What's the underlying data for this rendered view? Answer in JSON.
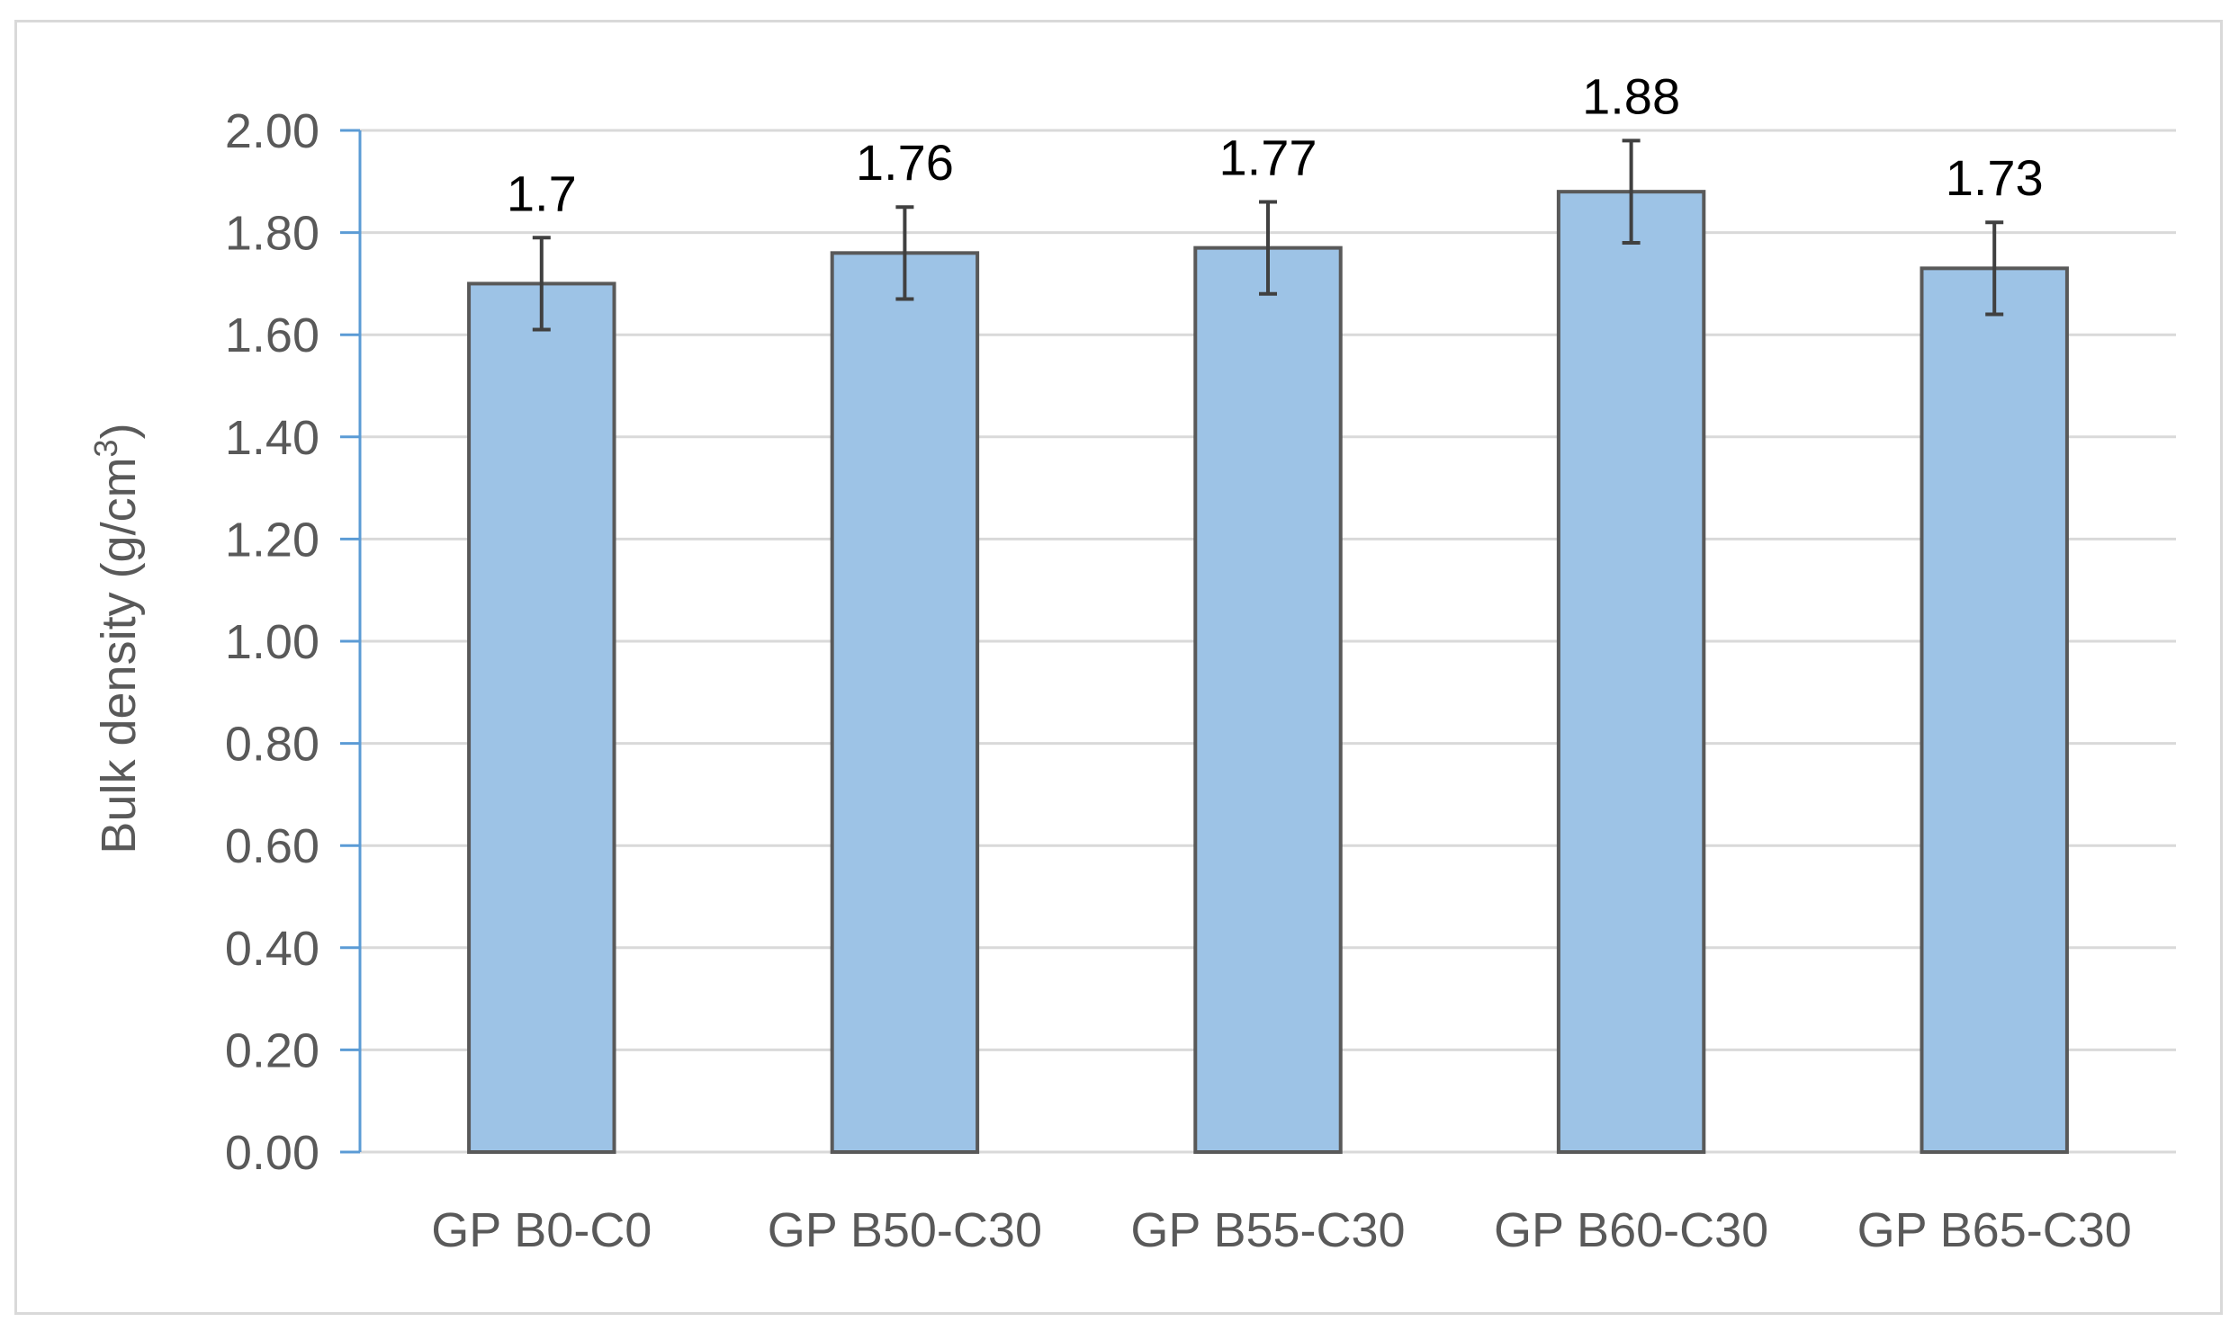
{
  "chart_data": {
    "type": "bar",
    "title": "",
    "xlabel": "",
    "ylabel": "Bulk density (g/cm",
    "ylabel_superscript": "3",
    "ylabel_suffix": ")",
    "ylim": [
      0,
      2.0
    ],
    "ytick_step": 0.2,
    "yticks": [
      "0.00",
      "0.20",
      "0.40",
      "0.60",
      "0.80",
      "1.00",
      "1.20",
      "1.40",
      "1.60",
      "1.80",
      "2.00"
    ],
    "categories": [
      "GP B0-C0",
      "GP B50-C30",
      "GP B55-C30",
      "GP B60-C30",
      "GP B65-C30"
    ],
    "values": [
      1.7,
      1.76,
      1.77,
      1.88,
      1.73
    ],
    "data_labels": [
      "1.7",
      "1.76",
      "1.77",
      "1.88",
      "1.73"
    ],
    "error": [
      0.09,
      0.09,
      0.09,
      0.1,
      0.09
    ],
    "grid": true,
    "legend": "none",
    "colors": {
      "bar_fill": "#9dc3e6",
      "bar_stroke": "#595959",
      "grid": "#d9d9d9",
      "axis": "#5b9bd5",
      "error_bar": "#404040"
    }
  }
}
